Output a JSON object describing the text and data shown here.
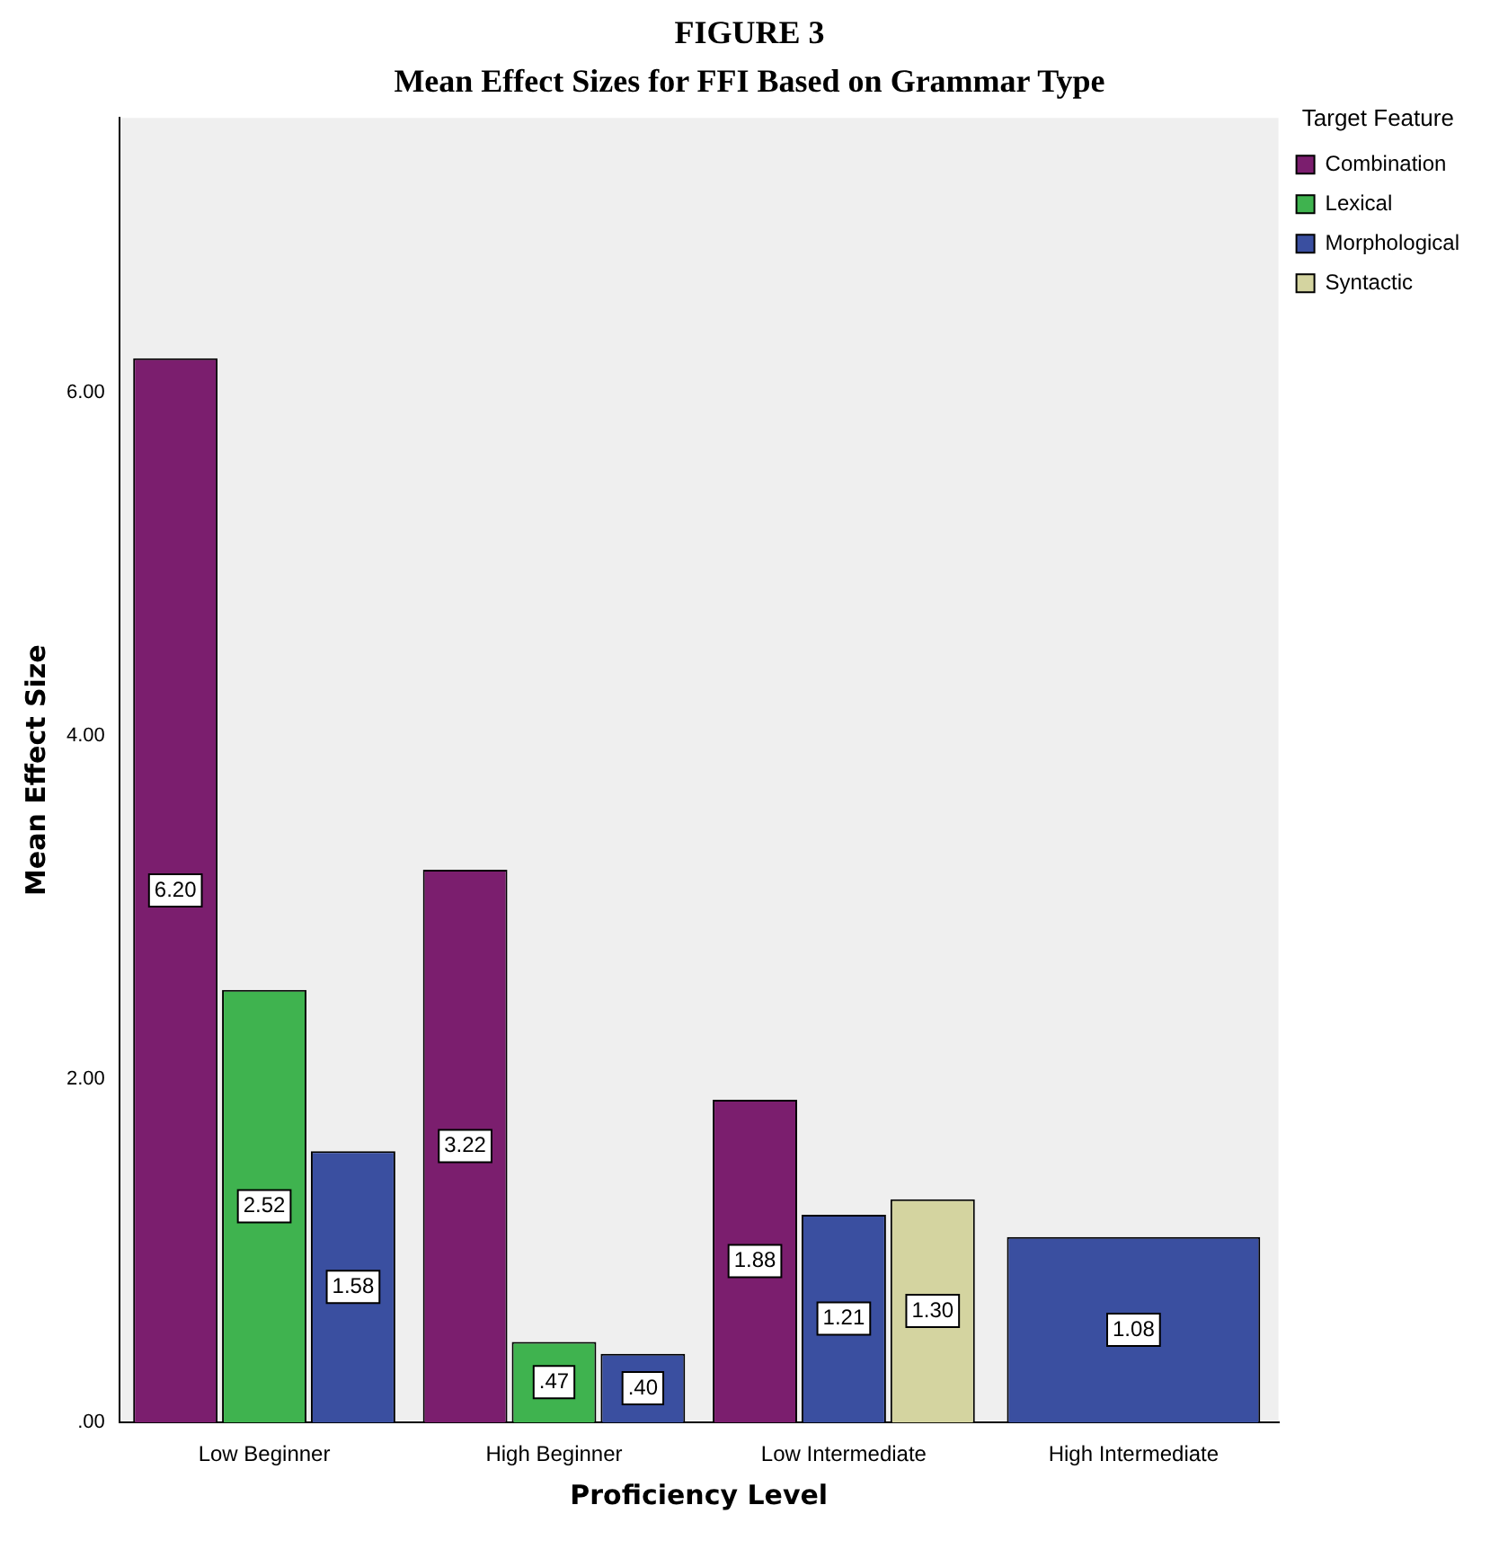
{
  "chart_data": {
    "type": "bar",
    "title": "FIGURE 3",
    "subtitle": "Mean Effect Sizes for FFI Based on Grammar Type",
    "xlabel": "Proficiency Level",
    "ylabel": "Mean Effect Size",
    "legend_title": "Target Feature",
    "categories": [
      "Low Beginner",
      "High Beginner",
      "Low Intermediate",
      "High Intermediate"
    ],
    "series": [
      {
        "name": "Combination",
        "color": "#7b1e6e",
        "values": [
          6.2,
          3.22,
          1.88,
          null
        ],
        "value_labels": [
          "6.20",
          "3.22",
          "1.88",
          null
        ]
      },
      {
        "name": "Lexical",
        "color": "#3fb34f",
        "values": [
          2.52,
          0.47,
          null,
          null
        ],
        "value_labels": [
          "2.52",
          ".47",
          null,
          null
        ]
      },
      {
        "name": "Morphological",
        "color": "#3a4fa0",
        "values": [
          1.58,
          0.4,
          1.21,
          1.08
        ],
        "value_labels": [
          "1.58",
          ".40",
          "1.21",
          "1.08"
        ]
      },
      {
        "name": "Syntactic",
        "color": "#d4d4a0",
        "values": [
          null,
          null,
          1.3,
          null
        ],
        "value_labels": [
          null,
          null,
          "1.30",
          null
        ]
      }
    ],
    "ylim": [
      0,
      7.6
    ],
    "yticks": [
      {
        "value": 0,
        "label": ".00"
      },
      {
        "value": 2,
        "label": "2.00"
      },
      {
        "value": 4,
        "label": "4.00"
      },
      {
        "value": 6,
        "label": "6.00"
      }
    ],
    "grid": false,
    "legend": "top right"
  }
}
